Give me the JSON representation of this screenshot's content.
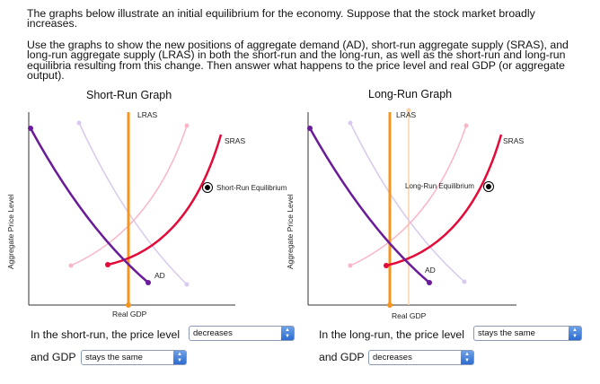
{
  "intro": "The graphs below illustrate an initial equilibrium for the economy. Suppose that the stock market broadly increases.",
  "instructions": "Use the graphs to show the new positions of aggregate demand (AD), short-run aggregate supply (SRAS), and long-run aggregate supply (LRAS) in both the short-run and the long-run, as well as the short-run and long-run equilibria resulting from this change. Then answer what happens to the price level and real GDP (or aggregate output).",
  "short_run": {
    "title": "Short-Run Graph",
    "y_label": "Aggregate Price Level",
    "x_label": "Real GDP",
    "lras_label": "LRAS",
    "sras_label": "SRAS",
    "ad_label": "AD",
    "equilibrium_label": "Short-Run Equilibrium"
  },
  "long_run": {
    "title": "Long-Run Graph",
    "y_label": "Aggregate Price Level",
    "x_label": "Real GDP",
    "lras_label": "LRAS",
    "sras_label": "SRAS",
    "ad_label": "AD",
    "equilibrium_label": "Long-Run Equilibrium"
  },
  "questions": {
    "sr_price_text": "In the short-run, the price level",
    "sr_price_value": "decreases",
    "sr_gdp_text": "and GDP",
    "sr_gdp_value": "stays the same",
    "lr_price_text": "In the long-run, the price level",
    "lr_price_value": "stays the same",
    "lr_gdp_text": "and GDP",
    "lr_gdp_value": "decreases"
  },
  "colors": {
    "lras": "#f7941d",
    "lras_faded": "#fbd3a6",
    "sras": "#e30b3a",
    "sras_faded": "#f9b6c6",
    "ad": "#6a1b9a",
    "ad_faded": "#d9c9ee",
    "axis": "#333333"
  }
}
